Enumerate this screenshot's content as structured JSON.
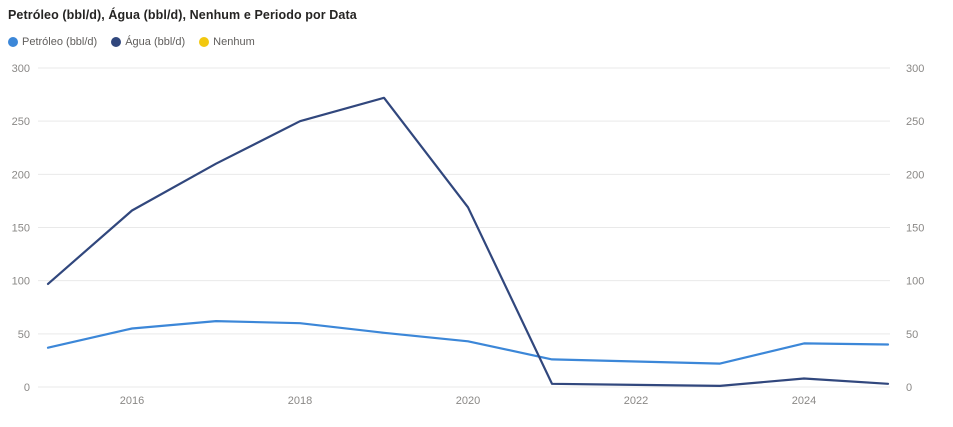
{
  "header": {
    "title": "Petróleo (bbl/d), Água (bbl/d), Nenhum e Periodo por Data"
  },
  "legend": [
    {
      "label": "Petróleo (bbl/d)",
      "color": "#3C87D8"
    },
    {
      "label": "Água (bbl/d)",
      "color": "#31477D"
    },
    {
      "label": "Nenhum",
      "color": "#F2C80F"
    }
  ],
  "chart_data": {
    "type": "line",
    "title": "Petróleo (bbl/d), Água (bbl/d), Nenhum e Periodo por Data",
    "xlabel": "Data",
    "ylabel": "",
    "x": [
      2015,
      2016,
      2017,
      2018,
      2019,
      2020,
      2021,
      2022,
      2023,
      2024,
      2025
    ],
    "x_ticks": [
      2016,
      2018,
      2020,
      2022,
      2024
    ],
    "y_ticks": [
      0,
      50,
      100,
      150,
      200,
      250,
      300
    ],
    "ylim": [
      0,
      300
    ],
    "grid": true,
    "dual_y_axis": true,
    "legend_position": "top-left",
    "series": [
      {
        "name": "Petróleo (bbl/d)",
        "color": "#3C87D8",
        "values": [
          37,
          55,
          62,
          60,
          51,
          43,
          26,
          24,
          22,
          41,
          40
        ]
      },
      {
        "name": "Água (bbl/d)",
        "color": "#31477D",
        "values": [
          97,
          166,
          210,
          250,
          272,
          169,
          3,
          2,
          1,
          8,
          3
        ]
      },
      {
        "name": "Nenhum",
        "color": "#F2C80F",
        "values": []
      }
    ],
    "colors": {
      "petroleo": "#3C87D8",
      "agua": "#31477D",
      "nenhum": "#F2C80F",
      "gridline": "#E9E9E9",
      "axis_text": "#8A8886"
    }
  }
}
